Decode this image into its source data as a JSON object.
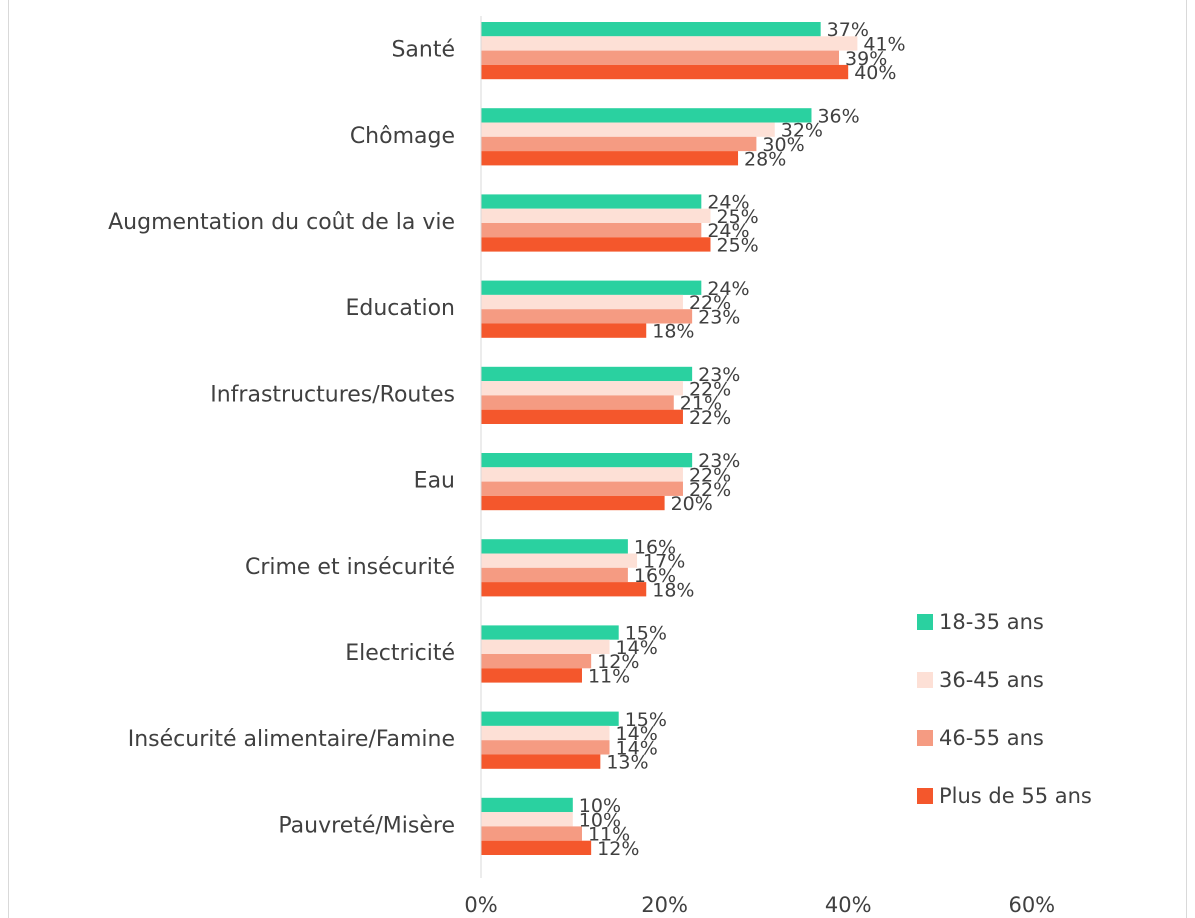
{
  "chart_data": {
    "type": "bar",
    "orientation": "horizontal",
    "categories": [
      "Santé",
      "Chômage",
      "Augmentation du coût de la vie",
      "Education",
      "Infrastructures/Routes",
      "Eau",
      "Crime et insécurité",
      "Electricité",
      "Insécurité alimentaire/Famine",
      "Pauvreté/Misère"
    ],
    "series": [
      {
        "name": "18-35 ans",
        "color": "#2ad1a0",
        "values": [
          37,
          36,
          24,
          24,
          23,
          23,
          16,
          15,
          15,
          10
        ],
        "labels": [
          "37%",
          "36%",
          "24%",
          "24%",
          "23%",
          "23%",
          "16%",
          "15%",
          "15%",
          "10%"
        ]
      },
      {
        "name": "36-45 ans",
        "color": "#fde0d6",
        "values": [
          41,
          32,
          25,
          22,
          22,
          22,
          17,
          14,
          14,
          10
        ],
        "labels": [
          "41%",
          "32%",
          "25%",
          "22%",
          "22%",
          "22%",
          "17%",
          "14%",
          "14%",
          "10%"
        ]
      },
      {
        "name": "46-55 ans",
        "color": "#f59b82",
        "values": [
          39,
          30,
          24,
          23,
          21,
          22,
          16,
          12,
          14,
          11
        ],
        "labels": [
          "39%",
          "30%",
          "24%",
          "23%",
          "21%",
          "22%",
          "16%",
          "12%",
          "14%",
          "11%"
        ]
      },
      {
        "name": "Plus de 55 ans",
        "color": "#f4572c",
        "values": [
          40,
          28,
          25,
          18,
          22,
          20,
          18,
          11,
          13,
          12
        ],
        "labels": [
          "40%",
          "28%",
          "25%",
          "18%",
          "22%",
          "20%",
          "18%",
          "11%",
          "13%",
          "12%"
        ]
      }
    ],
    "xlim": [
      0,
      60
    ],
    "xticks": [
      0,
      20,
      40,
      60
    ],
    "xtick_labels": [
      "0%",
      "20%",
      "40%",
      "60%"
    ],
    "title": "",
    "xlabel": "",
    "ylabel": "",
    "grid": false,
    "legend_position": "right"
  }
}
